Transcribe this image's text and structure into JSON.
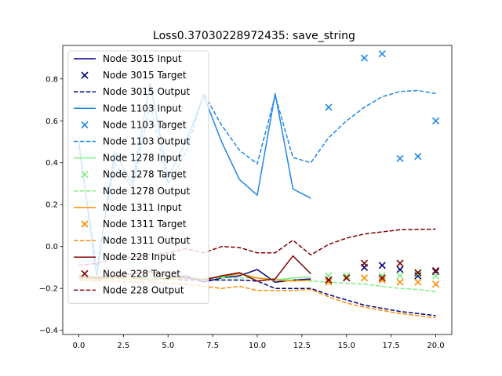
{
  "chart_data": {
    "type": "line",
    "title": "Loss0.37030228972435: save_string",
    "xlabel": "",
    "ylabel": "",
    "xlim": [
      -0.9,
      20.9
    ],
    "ylim": [
      -0.42,
      0.96
    ],
    "x_ticks": [
      0,
      2.5,
      5,
      7.5,
      10,
      12.5,
      15,
      17.5,
      20
    ],
    "x_tick_labels": [
      "0.0",
      "2.5",
      "5.0",
      "7.5",
      "10.0",
      "12.5",
      "15.0",
      "17.5",
      "20.0"
    ],
    "y_ticks": [
      -0.4,
      -0.2,
      0.0,
      0.2,
      0.4,
      0.6,
      0.8
    ],
    "y_tick_labels": [
      "−0.4",
      "−0.2",
      "0.0",
      "0.2",
      "0.4",
      "0.6",
      "0.8"
    ],
    "grid": false,
    "legend_position": "upper-left",
    "series": [
      {
        "name": "Node 3015 Input",
        "kind": "input",
        "color": "#000080",
        "x": [
          0,
          1,
          2,
          3,
          4,
          5,
          6,
          7,
          8,
          9,
          10,
          11,
          12,
          13
        ],
        "y": [
          -0.15,
          -0.16,
          -0.15,
          -0.15,
          -0.16,
          -0.15,
          -0.14,
          -0.17,
          -0.15,
          -0.14,
          -0.11,
          -0.17,
          -0.16,
          -0.155
        ]
      },
      {
        "name": "Node 3015 Target",
        "kind": "target",
        "color": "#000080",
        "x": [
          14,
          15,
          16,
          17,
          18,
          19,
          20
        ],
        "y": [
          -0.16,
          -0.15,
          -0.1,
          -0.09,
          -0.11,
          -0.14,
          -0.12
        ]
      },
      {
        "name": "Node 3015 Output",
        "kind": "output",
        "color": "#000080",
        "x": [
          0,
          1,
          2,
          3,
          4,
          5,
          6,
          7,
          8,
          9,
          10,
          11,
          12,
          13,
          14,
          15,
          16,
          17,
          18,
          19,
          20
        ],
        "y": [
          -0.15,
          -0.15,
          -0.15,
          -0.15,
          -0.15,
          -0.155,
          -0.16,
          -0.16,
          -0.16,
          -0.16,
          -0.165,
          -0.2,
          -0.2,
          -0.2,
          -0.23,
          -0.255,
          -0.28,
          -0.295,
          -0.31,
          -0.32,
          -0.33
        ]
      },
      {
        "name": "Node 1103 Input",
        "kind": "input",
        "color": "#1e88e5",
        "x": [
          0,
          1,
          2,
          3,
          4,
          5,
          6,
          7,
          8,
          9,
          10,
          11,
          12,
          13
        ],
        "y": [
          0.5,
          -0.14,
          0.45,
          0.3,
          0.78,
          0.33,
          0.5,
          0.72,
          0.5,
          0.32,
          0.245,
          0.73,
          0.275,
          0.23
        ]
      },
      {
        "name": "Node 1103 Target",
        "kind": "target",
        "color": "#1e88e5",
        "x": [
          14,
          16,
          17,
          18,
          19,
          20
        ],
        "y": [
          0.665,
          0.9,
          0.92,
          0.42,
          0.43,
          0.6
        ]
      },
      {
        "name": "Node 1103 Output",
        "kind": "output",
        "color": "#1e88e5",
        "x": [
          0,
          1,
          2,
          3,
          4,
          5,
          6,
          7,
          8,
          9,
          10,
          11,
          12,
          13,
          14,
          15,
          16,
          17,
          18,
          19,
          20
        ],
        "y": [
          0.48,
          -0.1,
          0.4,
          0.28,
          0.68,
          0.3,
          0.45,
          0.73,
          0.58,
          0.46,
          0.395,
          0.72,
          0.425,
          0.4,
          0.52,
          0.6,
          0.665,
          0.715,
          0.74,
          0.745,
          0.73
        ]
      },
      {
        "name": "Node 1278 Input",
        "kind": "input",
        "color": "#80f080",
        "x": [
          0,
          1,
          2,
          3,
          4,
          5,
          6,
          7,
          8,
          9,
          10,
          11,
          12,
          13
        ],
        "y": [
          -0.155,
          -0.16,
          -0.15,
          -0.16,
          -0.15,
          -0.16,
          -0.15,
          -0.155,
          -0.145,
          -0.13,
          -0.15,
          -0.16,
          -0.15,
          -0.145
        ]
      },
      {
        "name": "Node 1278 Target",
        "kind": "target",
        "color": "#80f080",
        "x": [
          14,
          15,
          16,
          17,
          18,
          19,
          20
        ],
        "y": [
          -0.14,
          -0.14,
          -0.15,
          -0.14,
          -0.14,
          -0.13,
          -0.14
        ]
      },
      {
        "name": "Node 1278 Output",
        "kind": "output",
        "color": "#80f080",
        "x": [
          0,
          1,
          2,
          3,
          4,
          5,
          6,
          7,
          8,
          9,
          10,
          11,
          12,
          13,
          14,
          15,
          16,
          17,
          18,
          19,
          20
        ],
        "y": [
          -0.14,
          -0.14,
          -0.145,
          -0.145,
          -0.145,
          -0.15,
          -0.15,
          -0.15,
          -0.15,
          -0.15,
          -0.15,
          -0.155,
          -0.16,
          -0.165,
          -0.17,
          -0.175,
          -0.18,
          -0.19,
          -0.2,
          -0.205,
          -0.215
        ]
      },
      {
        "name": "Node 1311 Input",
        "kind": "input",
        "color": "#ff8c00",
        "x": [
          0,
          1,
          2,
          3,
          4,
          5,
          6,
          7,
          8,
          9,
          10,
          11,
          12,
          13
        ],
        "y": [
          -0.15,
          -0.155,
          -0.15,
          -0.15,
          -0.16,
          -0.155,
          -0.15,
          -0.16,
          -0.14,
          -0.13,
          -0.15,
          -0.16,
          -0.165,
          -0.16
        ]
      },
      {
        "name": "Node 1311 Target",
        "kind": "target",
        "color": "#ff8c00",
        "x": [
          14,
          15,
          16,
          17,
          18,
          19,
          20
        ],
        "y": [
          -0.17,
          -0.15,
          -0.15,
          -0.16,
          -0.17,
          -0.17,
          -0.18
        ]
      },
      {
        "name": "Node 1311 Output",
        "kind": "output",
        "color": "#ff8c00",
        "x": [
          0,
          1,
          2,
          3,
          4,
          5,
          6,
          7,
          8,
          9,
          10,
          11,
          12,
          13,
          14,
          15,
          16,
          17,
          18,
          19,
          20
        ],
        "y": [
          -0.16,
          -0.165,
          -0.165,
          -0.17,
          -0.17,
          -0.175,
          -0.18,
          -0.19,
          -0.2,
          -0.19,
          -0.21,
          -0.21,
          -0.21,
          -0.205,
          -0.24,
          -0.27,
          -0.29,
          -0.305,
          -0.32,
          -0.33,
          -0.34
        ]
      },
      {
        "name": "Node 228 Input",
        "kind": "input",
        "color": "#800000",
        "x": [
          0,
          1,
          2,
          3,
          4,
          5,
          6,
          7,
          8,
          9,
          10,
          11,
          12,
          13
        ],
        "y": [
          -0.14,
          -0.15,
          -0.14,
          -0.13,
          -0.12,
          -0.14,
          -0.15,
          -0.16,
          -0.14,
          -0.125,
          -0.165,
          -0.155,
          -0.045,
          -0.13
        ]
      },
      {
        "name": "Node 228 Target",
        "kind": "target",
        "color": "#800000",
        "x": [
          14,
          15,
          16,
          17,
          18,
          19,
          20
        ],
        "y": [
          -0.16,
          -0.15,
          -0.08,
          -0.15,
          -0.08,
          -0.125,
          -0.115
        ]
      },
      {
        "name": "Node 228 Output",
        "kind": "output",
        "color": "#800000",
        "x": [
          0,
          1,
          2,
          3,
          4,
          5,
          6,
          7,
          8,
          9,
          10,
          11,
          12,
          13,
          14,
          15,
          16,
          17,
          18,
          19,
          20
        ],
        "y": [
          -0.09,
          -0.08,
          -0.06,
          -0.05,
          -0.04,
          -0.03,
          -0.01,
          -0.03,
          0.0,
          -0.005,
          -0.03,
          -0.03,
          0.03,
          -0.04,
          0.01,
          0.04,
          0.06,
          0.07,
          0.08,
          0.082,
          0.083
        ]
      }
    ]
  }
}
